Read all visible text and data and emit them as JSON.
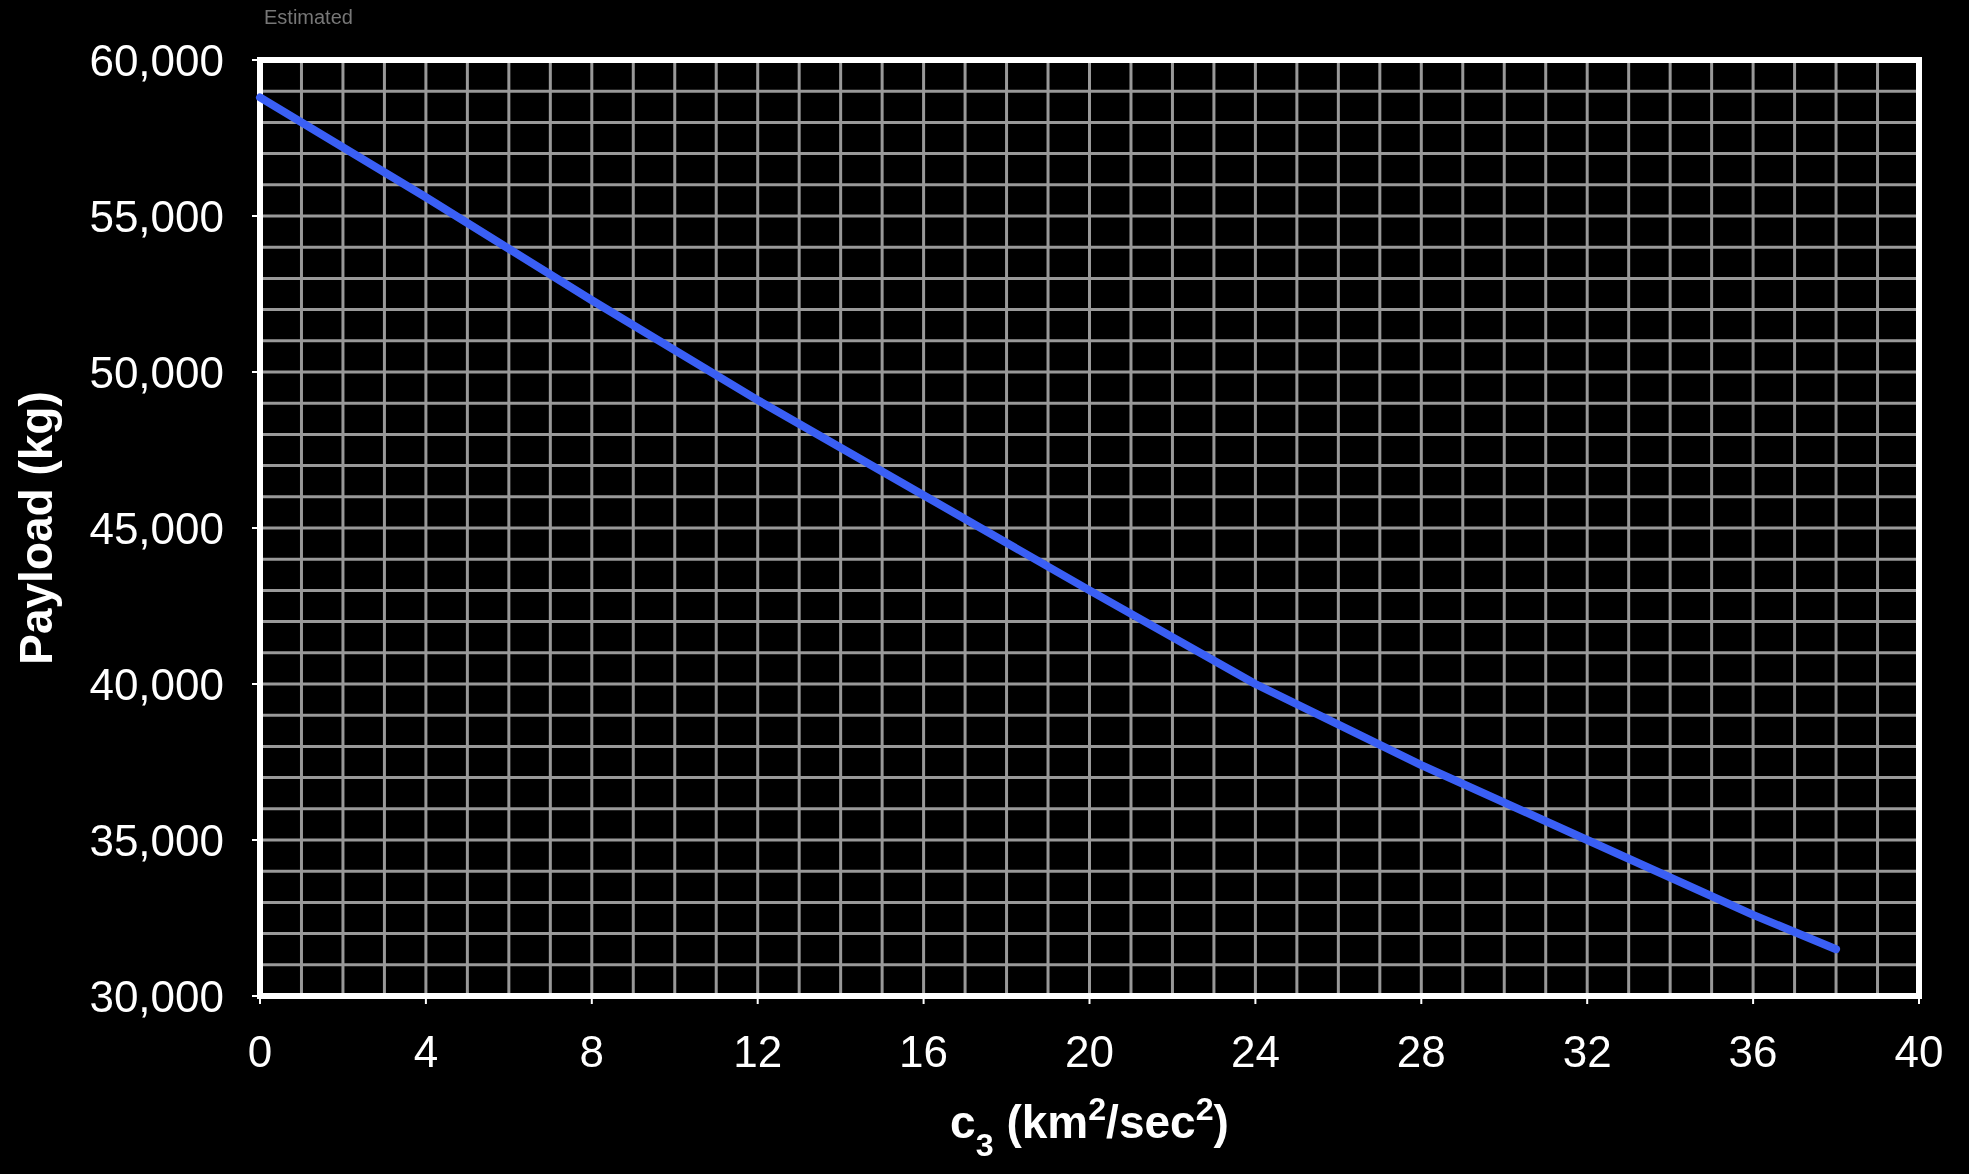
{
  "chart_data": {
    "type": "line",
    "xlabel": "c$_{3}$ (km$^{2}$/sec$^{2}$)",
    "ylabel": "Payload (kg)",
    "annotations": [
      "Estimated"
    ],
    "x": [
      0,
      4,
      8,
      12,
      16,
      20,
      24,
      28,
      32,
      36,
      38
    ],
    "series": [
      {
        "color": "#3a5ff5",
        "values": [
          58800,
          55600,
          52300,
          49100,
          46050,
          43000,
          40000,
          37400,
          35000,
          32600,
          31500
        ]
      }
    ],
    "xlim": [
      0,
      40
    ],
    "ylim": [
      30000,
      60000
    ],
    "xticks": [
      0,
      {
        "value": 1,
        "label": null
      },
      {
        "value": 2,
        "label": null
      },
      {
        "value": 3,
        "label": null
      },
      4,
      {
        "value": 5,
        "label": null
      },
      {
        "value": 6,
        "label": null
      },
      {
        "value": 7,
        "label": null
      },
      8,
      {
        "value": 9,
        "label": null
      },
      {
        "value": 10,
        "label": null
      },
      {
        "value": 11,
        "label": null
      },
      12,
      {
        "value": 13,
        "label": null
      },
      {
        "value": 14,
        "label": null
      },
      {
        "value": 15,
        "label": null
      },
      16,
      {
        "value": 17,
        "label": null
      },
      {
        "value": 18,
        "label": null
      },
      {
        "value": 19,
        "label": null
      },
      20,
      {
        "value": 21,
        "label": null
      },
      {
        "value": 22,
        "label": null
      },
      {
        "value": 23,
        "label": null
      },
      24,
      {
        "value": 25,
        "label": null
      },
      {
        "value": 26,
        "label": null
      },
      {
        "value": 27,
        "label": null
      },
      28,
      {
        "value": 29,
        "label": null
      },
      {
        "value": 30,
        "label": null
      },
      {
        "value": 31,
        "label": null
      },
      32,
      {
        "value": 33,
        "label": null
      },
      {
        "value": 34,
        "label": null
      },
      {
        "value": 35,
        "label": null
      },
      36,
      {
        "value": 37,
        "label": null
      },
      {
        "value": 38,
        "label": null
      },
      {
        "value": 39,
        "label": null
      },
      40
    ],
    "yticks": [
      {
        "value": 30000,
        "label": "30,000"
      },
      {
        "value": 31000,
        "label": null
      },
      {
        "value": 32000,
        "label": null
      },
      {
        "value": 33000,
        "label": null
      },
      {
        "value": 34000,
        "label": null
      },
      {
        "value": 35000,
        "label": "35,000"
      },
      {
        "value": 36000,
        "label": null
      },
      {
        "value": 37000,
        "label": null
      },
      {
        "value": 38000,
        "label": null
      },
      {
        "value": 39000,
        "label": null
      },
      {
        "value": 40000,
        "label": "40,000"
      },
      {
        "value": 41000,
        "label": null
      },
      {
        "value": 42000,
        "label": null
      },
      {
        "value": 43000,
        "label": null
      },
      {
        "value": 44000,
        "label": null
      },
      {
        "value": 45000,
        "label": "45,000"
      },
      {
        "value": 46000,
        "label": null
      },
      {
        "value": 47000,
        "label": null
      },
      {
        "value": 48000,
        "label": null
      },
      {
        "value": 49000,
        "label": null
      },
      {
        "value": 50000,
        "label": "50,000"
      },
      {
        "value": 51000,
        "label": null
      },
      {
        "value": 52000,
        "label": null
      },
      {
        "value": 53000,
        "label": null
      },
      {
        "value": 54000,
        "label": null
      },
      {
        "value": 55000,
        "label": "55,000"
      },
      {
        "value": 56000,
        "label": null
      },
      {
        "value": 57000,
        "label": null
      },
      {
        "value": 58000,
        "label": null
      },
      {
        "value": 59000,
        "label": null
      },
      {
        "value": 60000,
        "label": "60,000"
      }
    ],
    "grid": true,
    "marker": "none",
    "line_style": "solid"
  }
}
